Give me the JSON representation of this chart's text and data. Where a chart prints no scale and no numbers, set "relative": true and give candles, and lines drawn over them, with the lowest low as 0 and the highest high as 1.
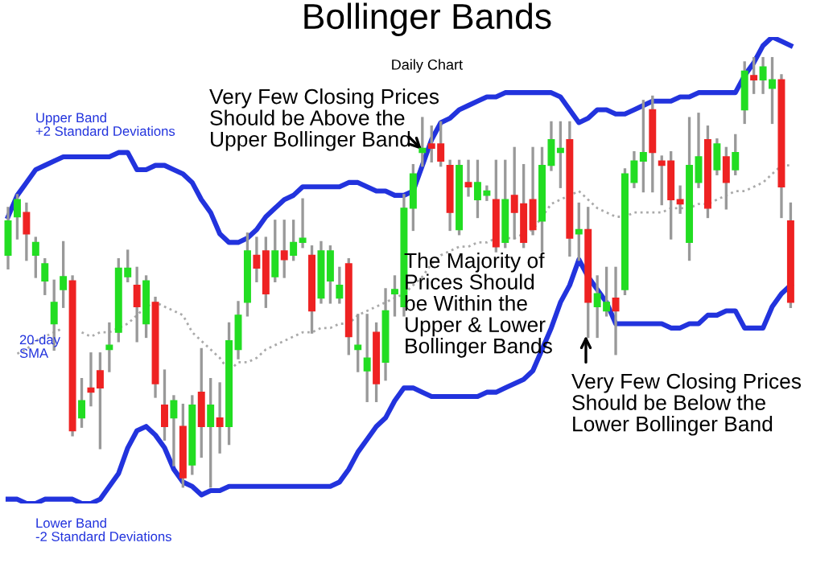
{
  "chart_data": {
    "type": "candlestick",
    "title": "Bollinger Bands",
    "subtitle": "Daily Chart",
    "relative": true,
    "categories": [
      null,
      null,
      null,
      null,
      null,
      null,
      null,
      null,
      null,
      null,
      null,
      null,
      null,
      null,
      null,
      null,
      null,
      null,
      null,
      null,
      null,
      null,
      null,
      null,
      null,
      null,
      null,
      null,
      null,
      null,
      null,
      null,
      null,
      null,
      null,
      null,
      null,
      null,
      null,
      null,
      null,
      null,
      null,
      null,
      null,
      null,
      null,
      null,
      null,
      null,
      null,
      null,
      null,
      null,
      null,
      null,
      null,
      null,
      null,
      null,
      null,
      null,
      null,
      null,
      null,
      null,
      null,
      null,
      null,
      null,
      null,
      null,
      null,
      null,
      null,
      null,
      null,
      null,
      null,
      null,
      null,
      null,
      null,
      null,
      null,
      null
    ],
    "colors": [
      "#22dd22",
      "#22dd22",
      "#ee2222",
      "#22dd22",
      "#22dd22",
      "#22dd22",
      "#22dd22",
      "#ee2222",
      "#22dd22",
      "#ee2222",
      "#ee2222",
      "#22dd22",
      "#22dd22",
      "#22dd22",
      "#ee2222",
      "#22dd22",
      "#ee2222",
      "#ee2222",
      "#22dd22",
      "#ee2222",
      "#22dd22",
      "#ee2222",
      "#22dd22",
      "#ee2222",
      "#22dd22",
      "#22dd22",
      "#22dd22",
      "#ee2222",
      "#ee2222",
      "#22dd22",
      "#ee2222",
      "#22dd22",
      "#22dd22",
      "#ee2222",
      "#22dd22",
      "#22dd22",
      "#22dd22",
      "#ee2222",
      "#22dd22",
      "#22dd22",
      "#ee2222",
      "#22dd22",
      "#22dd22",
      "#22dd22",
      "#22dd22",
      "#22dd22",
      "#ee2222",
      "#ee2222",
      "#ee2222",
      "#22dd22",
      "#ee2222",
      "#22dd22",
      "#22dd22",
      "#ee2222",
      "#22dd22",
      "#ee2222",
      "#ee2222",
      "#ee2222",
      "#22dd22",
      "#22dd22",
      "#22dd22",
      "#ee2222",
      "#22dd22",
      "#ee2222",
      "#22dd22",
      "#22dd22",
      "#ee2222",
      "#22dd22",
      "#22dd22",
      "#22dd22",
      "#ee2222",
      "#ee2222",
      "#ee2222",
      "#ee2222",
      "#22dd22",
      "#22dd22",
      "#ee2222",
      "#22dd22",
      "#ee2222",
      "#22dd22",
      "#22dd22",
      "#ee2222",
      "#22dd22",
      "#22dd22",
      "#ee2222",
      "#ee2222"
    ],
    "ohlc": [
      [
        0.54,
        0.65,
        0.51,
        0.62
      ],
      [
        0.63,
        0.68,
        0.58,
        0.67
      ],
      [
        0.64,
        0.66,
        0.53,
        0.59
      ],
      [
        0.54,
        0.58,
        0.49,
        0.57
      ],
      [
        0.48,
        0.53,
        0.45,
        0.52
      ],
      [
        0.38,
        0.48,
        0.32,
        0.43
      ],
      [
        0.46,
        0.57,
        0.42,
        0.49
      ],
      [
        0.48,
        0.49,
        0.12,
        0.13
      ],
      [
        0.16,
        0.25,
        0.14,
        0.2
      ],
      [
        0.23,
        0.31,
        0.19,
        0.22
      ],
      [
        0.27,
        0.31,
        0.09,
        0.23
      ],
      [
        0.32,
        0.38,
        0.27,
        0.33
      ],
      [
        0.36,
        0.53,
        0.34,
        0.51
      ],
      [
        0.49,
        0.55,
        0.48,
        0.51
      ],
      [
        0.47,
        0.51,
        0.34,
        0.42
      ],
      [
        0.38,
        0.49,
        0.35,
        0.48
      ],
      [
        0.43,
        0.44,
        0.21,
        0.24
      ],
      [
        0.19,
        0.27,
        0.11,
        0.14
      ],
      [
        0.16,
        0.21,
        0.05,
        0.2
      ],
      [
        0.14,
        0.19,
        0.0,
        0.02
      ],
      [
        0.05,
        0.21,
        0.03,
        0.19
      ],
      [
        0.22,
        0.32,
        0.07,
        0.14
      ],
      [
        0.14,
        0.25,
        0.0,
        0.19
      ],
      [
        0.16,
        0.24,
        0.08,
        0.14
      ],
      [
        0.14,
        0.38,
        0.1,
        0.34
      ],
      [
        0.32,
        0.43,
        0.3,
        0.4
      ],
      [
        0.43,
        0.59,
        0.4,
        0.55
      ],
      [
        0.54,
        0.58,
        0.48,
        0.51
      ],
      [
        0.55,
        0.58,
        0.42,
        0.45
      ],
      [
        0.49,
        0.62,
        0.48,
        0.55
      ],
      [
        0.55,
        0.62,
        0.49,
        0.53
      ],
      [
        0.54,
        0.62,
        0.53,
        0.57
      ],
      [
        0.57,
        0.67,
        0.56,
        0.58
      ],
      [
        0.54,
        0.56,
        0.36,
        0.41
      ],
      [
        0.44,
        0.57,
        0.43,
        0.55
      ],
      [
        0.48,
        0.56,
        0.43,
        0.55
      ],
      [
        0.44,
        0.51,
        0.43,
        0.47
      ],
      [
        0.52,
        0.53,
        0.31,
        0.35
      ],
      [
        0.32,
        0.4,
        0.27,
        0.33
      ],
      [
        0.27,
        0.4,
        0.2,
        0.3
      ],
      [
        0.36,
        0.38,
        0.2,
        0.24
      ],
      [
        0.29,
        0.46,
        0.25,
        0.41
      ],
      [
        0.45,
        0.49,
        0.4,
        0.46
      ],
      [
        0.42,
        0.68,
        0.4,
        0.65
      ],
      [
        0.65,
        0.75,
        0.6,
        0.73
      ],
      [
        0.78,
        0.86,
        0.75,
        0.79
      ],
      [
        0.8,
        0.84,
        0.76,
        0.79
      ],
      [
        0.8,
        0.85,
        0.75,
        0.76
      ],
      [
        0.75,
        0.76,
        0.6,
        0.64
      ],
      [
        0.6,
        0.76,
        0.59,
        0.75
      ],
      [
        0.71,
        0.76,
        0.68,
        0.7
      ],
      [
        0.67,
        0.76,
        0.63,
        0.71
      ],
      [
        0.68,
        0.7,
        0.67,
        0.69
      ],
      [
        0.67,
        0.76,
        0.55,
        0.56
      ],
      [
        0.57,
        0.76,
        0.56,
        0.67
      ],
      [
        0.68,
        0.79,
        0.58,
        0.64
      ],
      [
        0.66,
        0.75,
        0.56,
        0.57
      ],
      [
        0.67,
        0.79,
        0.59,
        0.6
      ],
      [
        0.62,
        0.79,
        0.55,
        0.75
      ],
      [
        0.75,
        0.85,
        0.74,
        0.81
      ],
      [
        0.78,
        0.85,
        0.7,
        0.79
      ],
      [
        0.81,
        0.85,
        0.54,
        0.58
      ],
      [
        0.59,
        0.66,
        0.53,
        0.6
      ],
      [
        0.6,
        0.65,
        0.35,
        0.43
      ],
      [
        0.42,
        0.49,
        0.35,
        0.45
      ],
      [
        0.41,
        0.51,
        0.4,
        0.43
      ],
      [
        0.44,
        0.51,
        0.31,
        0.41
      ],
      [
        0.46,
        0.74,
        0.45,
        0.73
      ],
      [
        0.71,
        0.78,
        0.7,
        0.76
      ],
      [
        0.76,
        0.9,
        0.69,
        0.78
      ],
      [
        0.88,
        0.91,
        0.69,
        0.78
      ],
      [
        0.76,
        0.77,
        0.66,
        0.75
      ],
      [
        0.76,
        0.78,
        0.58,
        0.67
      ],
      [
        0.67,
        0.7,
        0.64,
        0.66
      ],
      [
        0.57,
        0.86,
        0.53,
        0.75
      ],
      [
        0.71,
        0.87,
        0.7,
        0.77
      ],
      [
        0.81,
        0.84,
        0.63,
        0.65
      ],
      [
        0.74,
        0.81,
        0.73,
        0.8
      ],
      [
        0.77,
        0.79,
        0.65,
        0.71
      ],
      [
        0.74,
        0.82,
        0.73,
        0.78
      ],
      [
        0.88,
        0.99,
        0.85,
        0.97
      ],
      [
        0.96,
        1.0,
        0.92,
        0.95
      ],
      [
        0.95,
        1.0,
        0.92,
        0.98
      ],
      [
        0.93,
        1.0,
        0.85,
        0.95
      ],
      [
        0.95,
        0.96,
        0.63,
        0.7
      ],
      [
        0.62,
        0.66,
        0.42,
        0.43
      ]
    ],
    "series": [
      {
        "type": "line",
        "color": "#2233dd",
        "line_style": "solid",
        "values": [
          0.63,
          0.68,
          0.71,
          0.74,
          0.75,
          0.76,
          0.77,
          0.77,
          0.77,
          0.77,
          0.77,
          0.77,
          0.78,
          0.78,
          0.74,
          0.74,
          0.75,
          0.75,
          0.74,
          0.73,
          0.71,
          0.67,
          0.64,
          0.59,
          0.57,
          0.57,
          0.58,
          0.6,
          0.63,
          0.65,
          0.67,
          0.68,
          0.7,
          0.7,
          0.7,
          0.7,
          0.7,
          0.71,
          0.71,
          0.7,
          0.69,
          0.69,
          0.68,
          0.68,
          0.69,
          0.75,
          0.81,
          0.85,
          0.86,
          0.88,
          0.89,
          0.9,
          0.91,
          0.91,
          0.92,
          0.92,
          0.92,
          0.92,
          0.92,
          0.92,
          0.91,
          0.88,
          0.85,
          0.86,
          0.88,
          0.88,
          0.87,
          0.87,
          0.88,
          0.89,
          0.9,
          0.9,
          0.9,
          0.91,
          0.91,
          0.92,
          0.92,
          0.92,
          0.92,
          0.92,
          0.96,
          0.99,
          1.03,
          1.05,
          1.04,
          1.03
        ]
      },
      {
        "type": "line",
        "color": "#aaaaaa",
        "line_style": "dotted",
        "values": [
          null,
          0.31,
          0.32,
          0.34,
          0.35,
          0.36,
          0.37,
          null,
          0.36,
          0.35,
          0.36,
          0.36,
          0.37,
          0.38,
          0.4,
          0.42,
          0.43,
          0.42,
          0.41,
          0.4,
          0.36,
          0.34,
          0.32,
          0.3,
          0.27,
          0.29,
          0.29,
          0.3,
          0.32,
          0.33,
          0.34,
          0.35,
          0.36,
          0.36,
          0.37,
          0.37,
          0.38,
          0.38,
          0.4,
          0.41,
          0.42,
          0.43,
          0.44,
          0.45,
          0.47,
          0.49,
          0.52,
          0.54,
          0.55,
          0.56,
          0.56,
          0.57,
          0.57,
          0.58,
          0.58,
          0.58,
          0.59,
          0.6,
          0.63,
          0.66,
          0.67,
          0.68,
          0.69,
          0.67,
          0.65,
          0.64,
          0.63,
          0.63,
          0.64,
          0.64,
          0.64,
          0.64,
          0.65,
          0.65,
          0.65,
          0.66,
          0.66,
          0.67,
          0.68,
          0.69,
          0.69,
          0.7,
          0.71,
          0.73,
          0.75,
          0.75
        ]
      },
      {
        "type": "line",
        "color": "#2233dd",
        "line_style": "solid",
        "values": [
          -0.03,
          -0.03,
          -0.04,
          -0.04,
          -0.03,
          -0.03,
          -0.03,
          -0.03,
          -0.04,
          -0.04,
          -0.03,
          0.0,
          0.03,
          0.09,
          0.13,
          0.14,
          0.12,
          0.09,
          0.04,
          0.01,
          0.0,
          -0.02,
          -0.01,
          -0.01,
          0.0,
          0.0,
          0.0,
          0.0,
          0.0,
          0.0,
          0.0,
          0.0,
          0.0,
          0.0,
          0.0,
          0.0,
          0.01,
          0.04,
          0.08,
          0.11,
          0.14,
          0.16,
          0.2,
          0.23,
          0.23,
          0.22,
          0.21,
          0.21,
          0.21,
          0.21,
          0.21,
          0.21,
          0.22,
          0.22,
          0.23,
          0.24,
          0.25,
          0.27,
          0.32,
          0.37,
          0.43,
          0.47,
          0.53,
          0.49,
          0.46,
          0.43,
          0.38,
          0.38,
          0.38,
          0.38,
          0.38,
          0.38,
          0.37,
          0.37,
          0.38,
          0.38,
          0.4,
          0.4,
          0.41,
          0.41,
          0.37,
          0.37,
          0.37,
          0.42,
          0.45,
          0.47
        ]
      }
    ],
    "annotations": [
      "Upper Band\n+2 Standard Deviations",
      "20-day\nSMA",
      "Lower Band\n-2 Standard Deviations",
      "Very Few Closing Prices\nShould be Above the\nUpper Bollinger Band",
      "The Majority of\nPrices Should\nbe Within the\nUpper & Lower\nBollinger Bands",
      "Very Few Closing Prices\nShould be Below the\nLower Bollinger Band"
    ]
  }
}
